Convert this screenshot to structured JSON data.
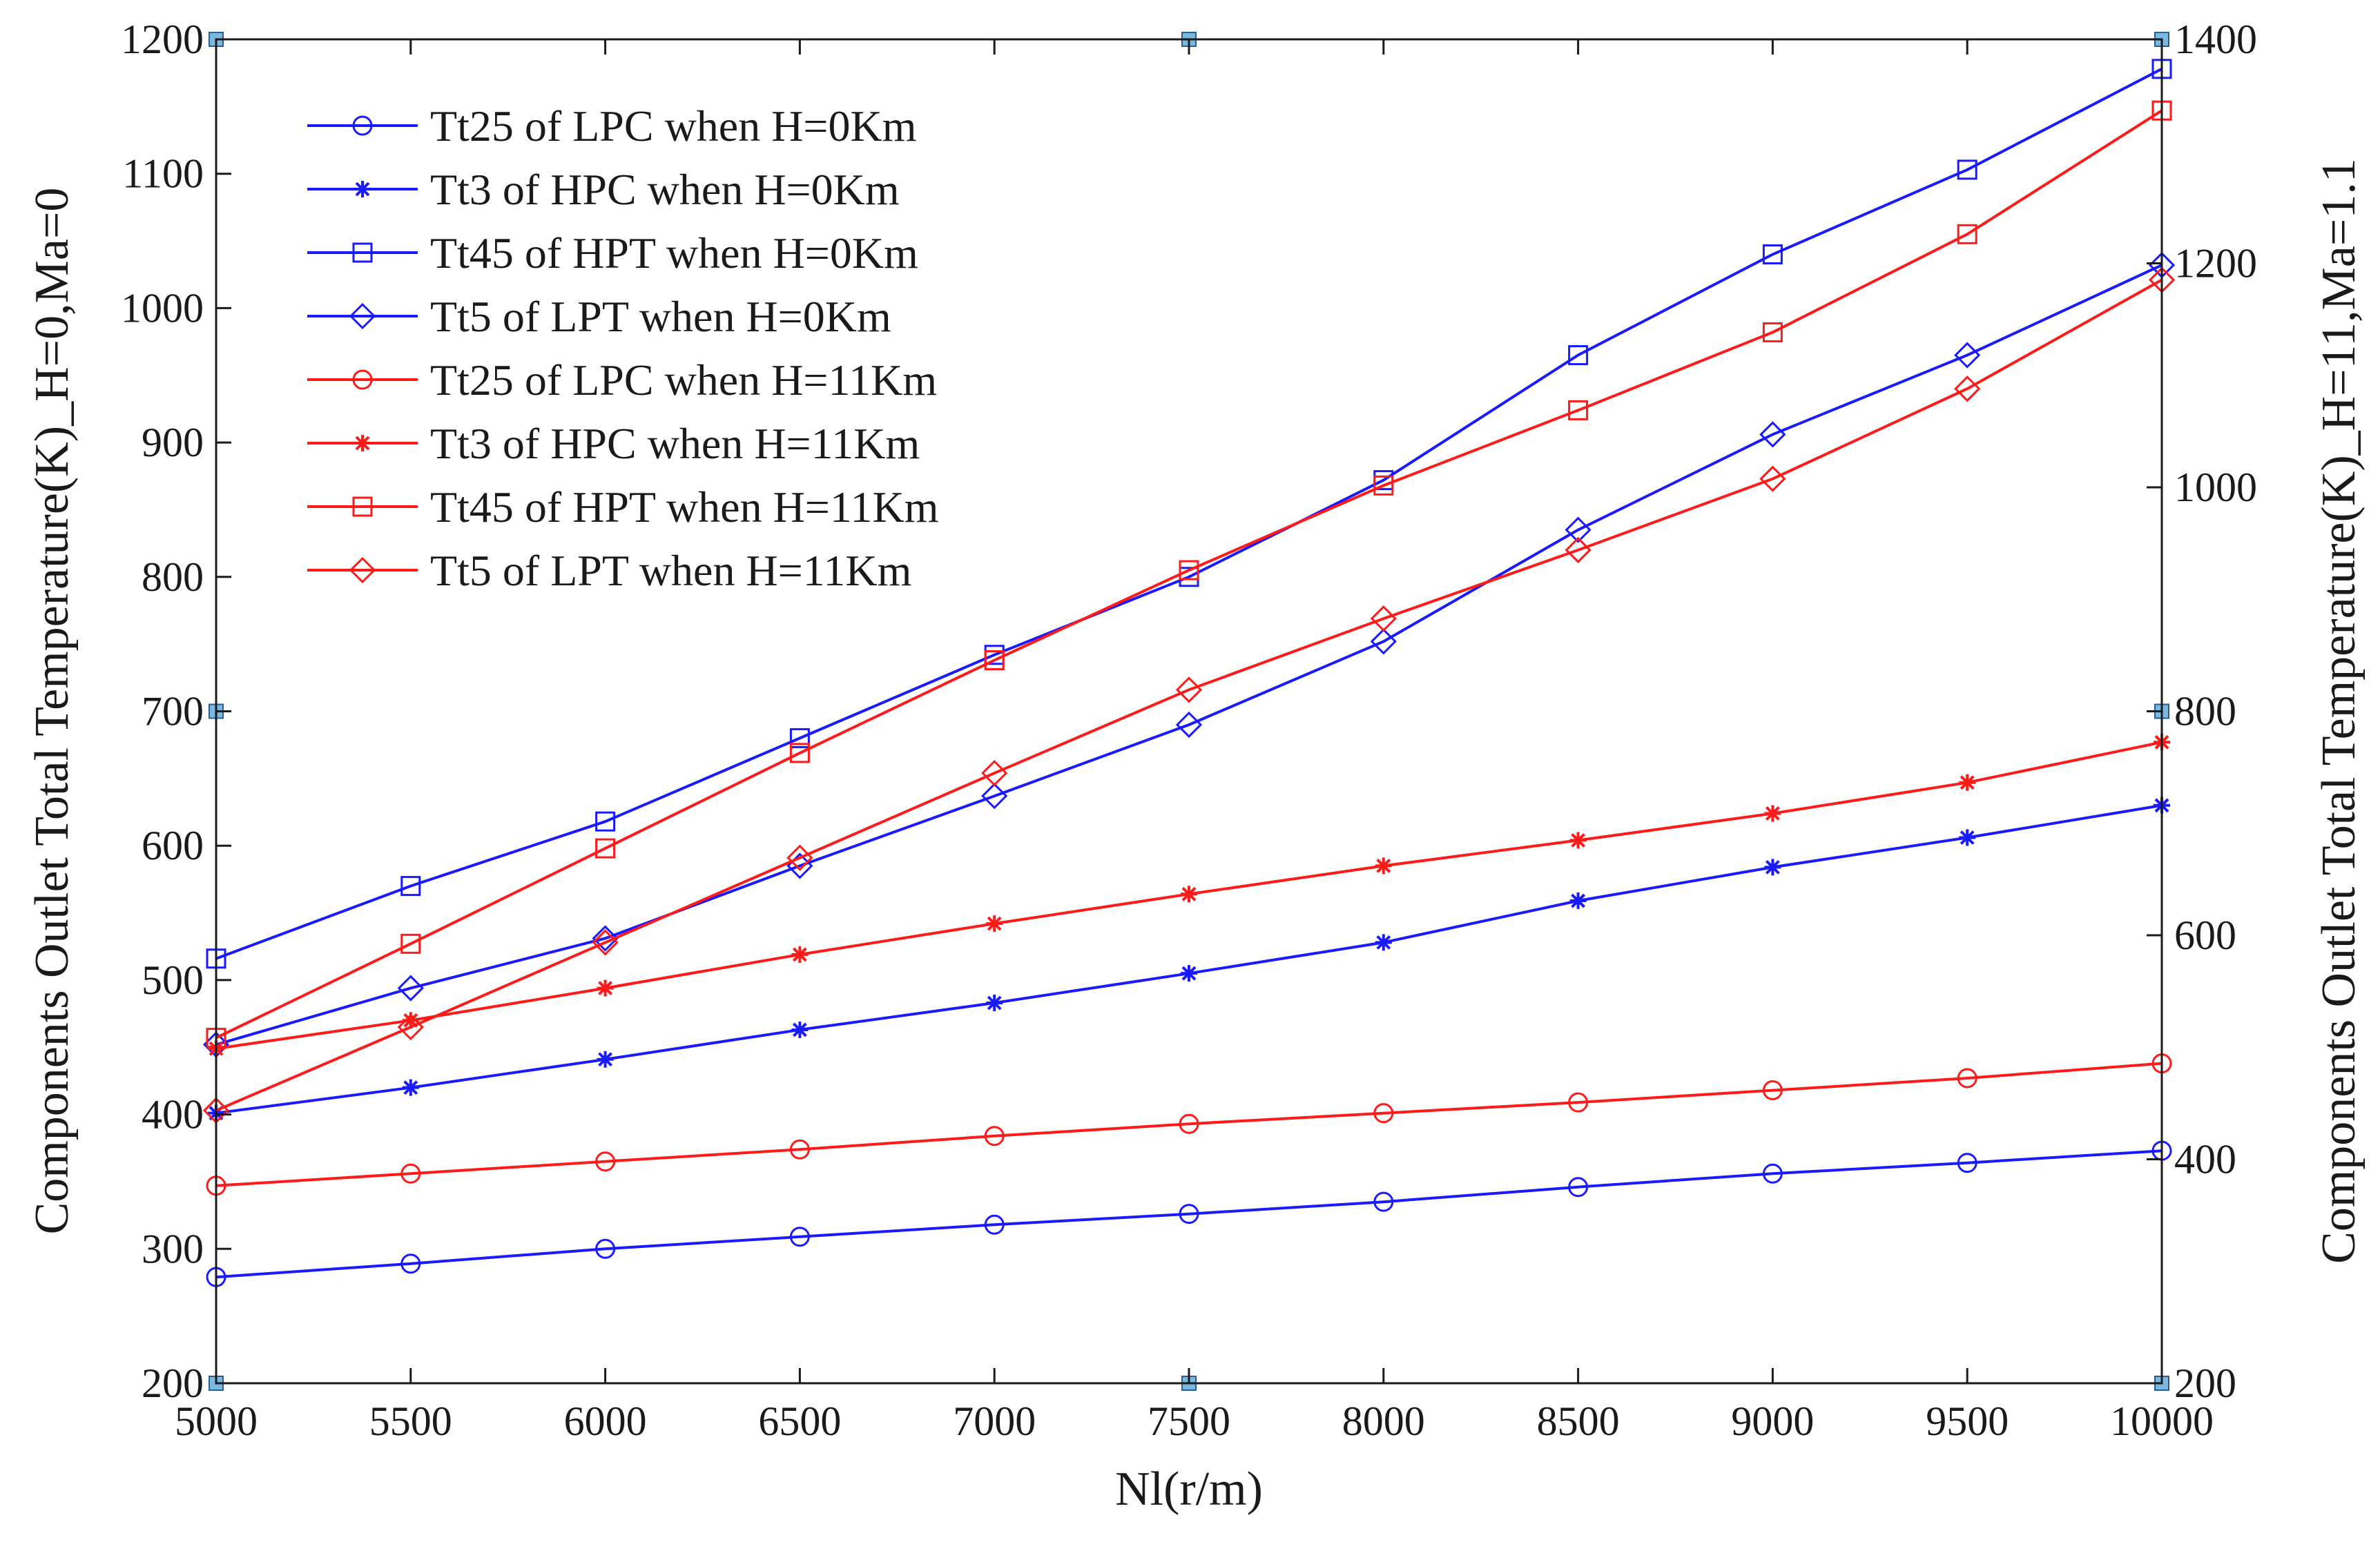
{
  "chart_data": {
    "type": "line",
    "xlabel": "Nl(r/m)",
    "ylabel_left": "Components Outlet Total Temperature(K)_H=0,Ma=0",
    "ylabel_right": "Components Outlet Total Temperature(K)_H=11,Ma=1.1",
    "x": [
      5000,
      5500,
      6000,
      6500,
      7000,
      7500,
      8000,
      8500,
      9000,
      9500,
      10000
    ],
    "xlim": [
      5000,
      10000
    ],
    "ylim_left": [
      200,
      1200
    ],
    "ylim_right": [
      200,
      1400
    ],
    "x_ticks": [
      "5000",
      "5500",
      "6000",
      "6500",
      "7000",
      "7500",
      "8000",
      "8500",
      "9000",
      "9500",
      "10000"
    ],
    "y_ticks_left": [
      "200",
      "300",
      "400",
      "500",
      "600",
      "700",
      "800",
      "900",
      "1000",
      "1100",
      "1200"
    ],
    "y_ticks_right": [
      "200",
      "400",
      "600",
      "800",
      "1000",
      "1200",
      "1400"
    ],
    "grid": false,
    "legend_position": "top-left",
    "series": [
      {
        "name": "Tt25 of LPC when H=0Km",
        "color": "#1a1aff",
        "marker": "circle",
        "axis": "left",
        "values": [
          279,
          289,
          300,
          309,
          318,
          326,
          335,
          346,
          356,
          364,
          373
        ]
      },
      {
        "name": "Tt3 of HPC when H=0Km",
        "color": "#1a1aff",
        "marker": "star",
        "axis": "left",
        "values": [
          401,
          420,
          441,
          463,
          483,
          505,
          528,
          559,
          584,
          606,
          630
        ]
      },
      {
        "name": "Tt45 of HPT when H=0Km",
        "color": "#1a1aff",
        "marker": "square",
        "axis": "left",
        "values": [
          516,
          570,
          618,
          680,
          742,
          800,
          872,
          965,
          1040,
          1103,
          1178
        ]
      },
      {
        "name": "Tt5 of LPT when H=0Km",
        "color": "#1a1aff",
        "marker": "diamond",
        "axis": "left",
        "values": [
          452,
          494,
          531,
          585,
          637,
          690,
          752,
          835,
          906,
          965,
          1032
        ]
      },
      {
        "name": "Tt25 of LPC when H=11Km",
        "color": "#ff1a1a",
        "marker": "circle",
        "axis": "left",
        "values": [
          347,
          356,
          365,
          374,
          384,
          393,
          401,
          409,
          418,
          427,
          438
        ]
      },
      {
        "name": "Tt3 of HPC when H=11Km",
        "color": "#ff1a1a",
        "marker": "star",
        "axis": "left",
        "values": [
          449,
          470,
          494,
          519,
          542,
          564,
          585,
          604,
          624,
          647,
          677
        ]
      },
      {
        "name": "Tt45 of HPT when H=11Km",
        "color": "#ff1a1a",
        "marker": "square",
        "axis": "left",
        "values": [
          457,
          527,
          598,
          669,
          738,
          805,
          868,
          924,
          982,
          1055,
          1147
        ]
      },
      {
        "name": "Tt5 of LPT when H=11Km",
        "color": "#ff1a1a",
        "marker": "diamond",
        "axis": "left",
        "values": [
          403,
          465,
          528,
          591,
          654,
          716,
          769,
          820,
          873,
          940,
          1021
        ]
      }
    ],
    "corner_markers": [
      {
        "x": 5000,
        "y": 1200
      },
      {
        "x": 7500,
        "y": 1200
      },
      {
        "x": 10000,
        "y": 1200
      },
      {
        "x": 5000,
        "y": 700
      },
      {
        "x": 10000,
        "y": 700
      },
      {
        "x": 5000,
        "y": 200
      },
      {
        "x": 7500,
        "y": 200
      },
      {
        "x": 10000,
        "y": 200
      }
    ],
    "corner_marker_color": "#7ab8e0"
  }
}
